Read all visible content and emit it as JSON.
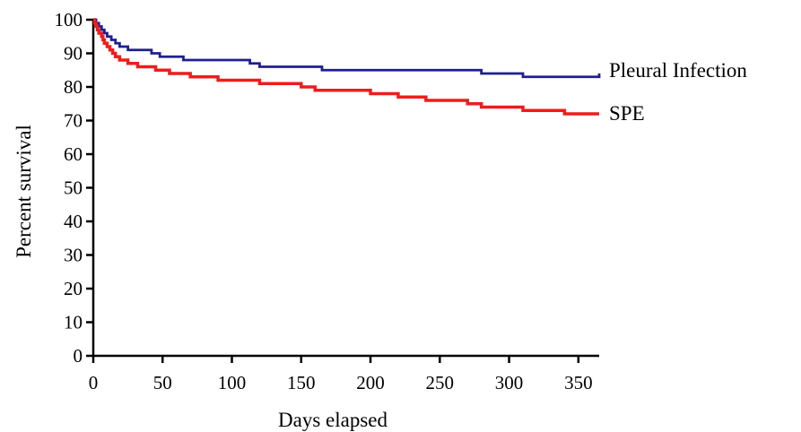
{
  "chart_data": {
    "type": "line",
    "title": "",
    "xlabel": "Days elapsed",
    "ylabel": "Percent survival",
    "xlim": [
      0,
      365
    ],
    "ylim": [
      0,
      100
    ],
    "x_ticks": [
      0,
      50,
      100,
      150,
      200,
      250,
      300,
      350
    ],
    "y_ticks": [
      0,
      10,
      20,
      30,
      40,
      50,
      60,
      70,
      80,
      90,
      100
    ],
    "grid": false,
    "legend": "line-end labels",
    "step": true,
    "series": [
      {
        "name": "Pleural Infection",
        "color": "#1f1f8f",
        "x": [
          0,
          2,
          4,
          6,
          8,
          10,
          13,
          16,
          19,
          22,
          25,
          28,
          32,
          42,
          48,
          56,
          65,
          75,
          85,
          95,
          105,
          113,
          120,
          130,
          140,
          152,
          165,
          180,
          200,
          220,
          240,
          260,
          280,
          295,
          310,
          325,
          340,
          355,
          365
        ],
        "y": [
          100,
          99,
          98,
          97,
          96,
          95,
          94,
          93,
          92,
          92,
          91,
          91,
          91,
          90,
          89,
          89,
          88,
          88,
          88,
          88,
          88,
          87,
          86,
          86,
          86,
          86,
          85,
          85,
          85,
          85,
          85,
          85,
          84,
          84,
          83,
          83,
          83,
          83,
          84
        ]
      },
      {
        "name": "SPE",
        "color": "#ee1c1c",
        "x": [
          0,
          1,
          2,
          3,
          4,
          5,
          6,
          7,
          8,
          10,
          12,
          14,
          16,
          19,
          22,
          25,
          28,
          32,
          36,
          40,
          45,
          50,
          55,
          60,
          70,
          80,
          90,
          100,
          110,
          120,
          130,
          140,
          150,
          160,
          170,
          180,
          190,
          200,
          210,
          220,
          230,
          240,
          250,
          260,
          270,
          280,
          290,
          300,
          310,
          320,
          330,
          340,
          350,
          360,
          365
        ],
        "y": [
          100,
          99,
          98,
          97,
          96,
          96,
          95,
          94,
          93,
          92,
          91,
          90,
          89,
          88,
          88,
          87,
          87,
          86,
          86,
          86,
          85,
          85,
          84,
          84,
          83,
          83,
          82,
          82,
          82,
          81,
          81,
          81,
          80,
          79,
          79,
          79,
          79,
          78,
          78,
          77,
          77,
          76,
          76,
          76,
          75,
          74,
          74,
          74,
          73,
          73,
          73,
          72,
          72,
          72,
          72
        ]
      }
    ]
  }
}
